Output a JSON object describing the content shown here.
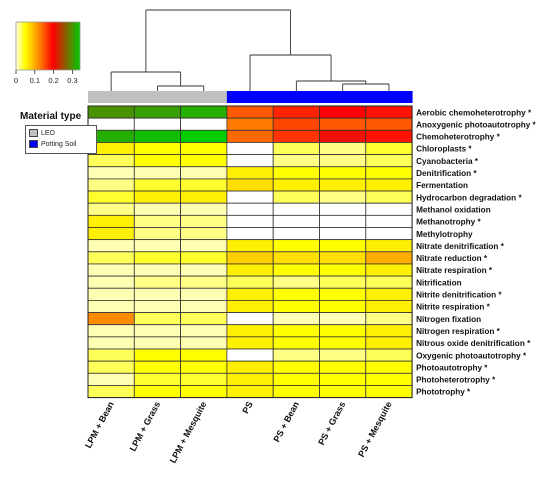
{
  "chart_data": {
    "type": "heatmap",
    "color_key": {
      "tick_labels": [
        "0",
        "0.1",
        "0.2",
        "0.3"
      ],
      "colors": [
        "#ffffe0",
        "#ffff00",
        "#ff8c00",
        "#ff0000",
        "#00cc00"
      ]
    },
    "material_type": {
      "title": "Material type",
      "legend": [
        {
          "label": "LEO",
          "color": "#c0c0c0"
        },
        {
          "label": "Potting Soil",
          "color": "#0000ff"
        }
      ],
      "groups": [
        "LEO",
        "LEO",
        "LEO",
        "Potting Soil",
        "Potting Soil",
        "Potting Soil",
        "Potting Soil"
      ]
    },
    "columns": [
      "LPM + Bean",
      "LPM + Grass",
      "LPM + Mesquite",
      "PS",
      "PS + Bean",
      "PS + Grass",
      "PS + Mesquite"
    ],
    "rows": [
      "Aerobic chemoheterotrophy *",
      "Anoxygenic photoautotrophy *",
      "Chemoheterotrophy *",
      "Chloroplasts *",
      "Cyanobacteria *",
      "Denitrification *",
      "Fermentation",
      "Hydrocarbon degradation *",
      "Methanol oxidation",
      "Methanotrophy *",
      "Methylotrophy",
      "Nitrate denitrification *",
      "Nitrate reduction *",
      "Nitrate respiration *",
      "Nitrification",
      "Nitrite denitrification *",
      "Nitrite respiration *",
      "Nitrogen fixation",
      "Nitrogen respiration *",
      "Nitrous oxide denitrification *",
      "Oxygenic photoautotrophy *",
      "Photoautotrophy *",
      "Photoheterotrophy *",
      "Phototrophy *"
    ],
    "values": [
      [
        0.3,
        0.31,
        0.32,
        0.15,
        0.18,
        0.2,
        0.19
      ],
      [
        0.0,
        0.0,
        0.0,
        0.13,
        0.16,
        0.15,
        0.15
      ],
      [
        0.32,
        0.33,
        0.34,
        0.14,
        0.17,
        0.21,
        0.19
      ],
      [
        0.06,
        0.05,
        0.05,
        0.0,
        0.03,
        0.02,
        0.04
      ],
      [
        0.03,
        0.05,
        0.05,
        0.0,
        0.02,
        0.02,
        0.03
      ],
      [
        0.01,
        0.01,
        0.01,
        0.06,
        0.05,
        0.05,
        0.05
      ],
      [
        0.02,
        0.04,
        0.04,
        0.07,
        0.06,
        0.06,
        0.06
      ],
      [
        0.04,
        0.06,
        0.06,
        0.0,
        0.03,
        0.02,
        0.03
      ],
      [
        0.02,
        0.01,
        0.01,
        0.0,
        0.0,
        0.0,
        0.0
      ],
      [
        0.06,
        0.02,
        0.02,
        0.0,
        0.0,
        0.0,
        0.0
      ],
      [
        0.06,
        0.02,
        0.02,
        0.0,
        0.0,
        0.0,
        0.0
      ],
      [
        0.01,
        0.01,
        0.01,
        0.06,
        0.05,
        0.05,
        0.06
      ],
      [
        0.03,
        0.04,
        0.04,
        0.08,
        0.07,
        0.07,
        0.1
      ],
      [
        0.01,
        0.01,
        0.01,
        0.06,
        0.05,
        0.05,
        0.06
      ],
      [
        0.01,
        0.02,
        0.02,
        0.03,
        0.02,
        0.03,
        0.03
      ],
      [
        0.01,
        0.01,
        0.01,
        0.06,
        0.05,
        0.05,
        0.06
      ],
      [
        0.01,
        0.01,
        0.01,
        0.06,
        0.05,
        0.05,
        0.06
      ],
      [
        0.12,
        0.03,
        0.03,
        0.0,
        0.01,
        0.01,
        0.02
      ],
      [
        0.01,
        0.01,
        0.01,
        0.06,
        0.05,
        0.05,
        0.06
      ],
      [
        0.01,
        0.01,
        0.01,
        0.06,
        0.05,
        0.05,
        0.06
      ],
      [
        0.03,
        0.05,
        0.05,
        0.0,
        0.02,
        0.02,
        0.03
      ],
      [
        0.03,
        0.05,
        0.05,
        0.06,
        0.05,
        0.05,
        0.05
      ],
      [
        0.01,
        0.04,
        0.04,
        0.06,
        0.05,
        0.05,
        0.05
      ],
      [
        0.03,
        0.05,
        0.05,
        0.06,
        0.05,
        0.05,
        0.05
      ]
    ]
  }
}
